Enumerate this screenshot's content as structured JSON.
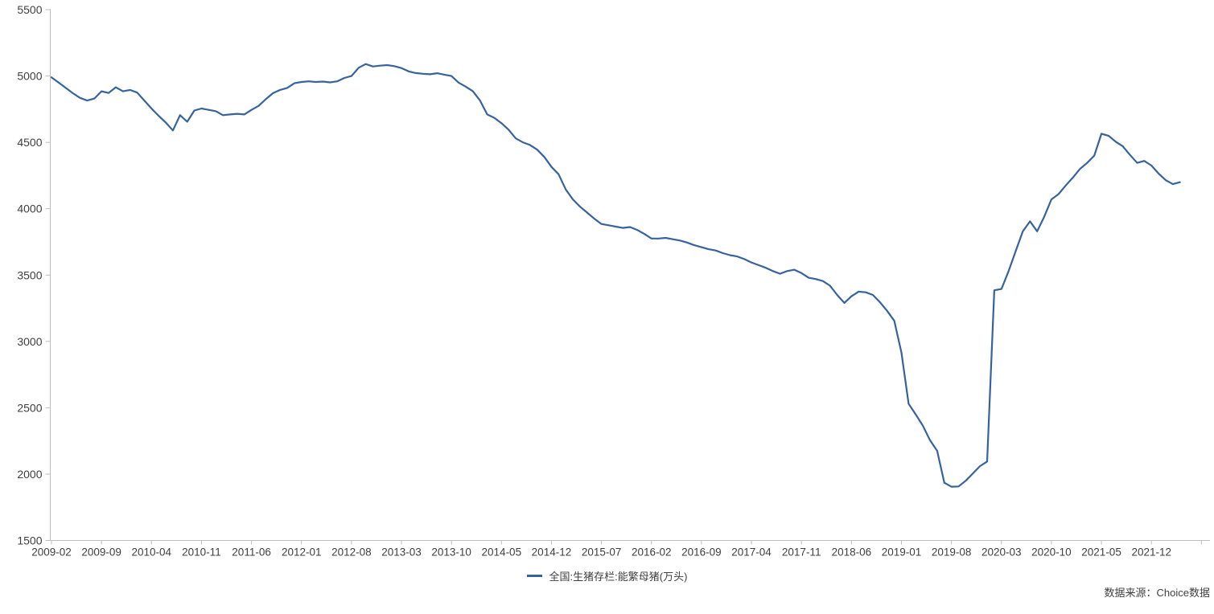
{
  "chart_data": {
    "type": "line",
    "title": "",
    "grid": false,
    "legend_position": "bottom-center",
    "ylim": [
      1500,
      5500
    ],
    "y_ticks": [
      5500,
      5000,
      4500,
      4000,
      3500,
      3000,
      2500,
      2000,
      1500
    ],
    "x_tick_labels": [
      "2009-02",
      "2009-09",
      "2010-04",
      "2010-11",
      "2011-06",
      "2012-01",
      "2012-08",
      "2013-03",
      "2013-10",
      "2014-05",
      "2014-12",
      "2015-07",
      "2016-02",
      "2016-09",
      "2017-04",
      "2017-11",
      "2018-06",
      "2019-01",
      "2019-08",
      "2020-03",
      "2020-10",
      "2021-05",
      "2021-12"
    ],
    "series": [
      {
        "name": "全国:生猪存栏:能繁母猪(万头)",
        "color": "#36639e",
        "months": [
          "2009-02",
          "2009-03",
          "2009-04",
          "2009-05",
          "2009-06",
          "2009-07",
          "2009-08",
          "2009-09",
          "2009-10",
          "2009-11",
          "2009-12",
          "2010-01",
          "2010-02",
          "2010-03",
          "2010-04",
          "2010-05",
          "2010-06",
          "2010-07",
          "2010-08",
          "2010-09",
          "2010-10",
          "2010-11",
          "2010-12",
          "2011-01",
          "2011-02",
          "2011-03",
          "2011-04",
          "2011-05",
          "2011-06",
          "2011-07",
          "2011-08",
          "2011-09",
          "2011-10",
          "2011-11",
          "2011-12",
          "2012-01",
          "2012-02",
          "2012-03",
          "2012-04",
          "2012-05",
          "2012-06",
          "2012-07",
          "2012-08",
          "2012-09",
          "2012-10",
          "2012-11",
          "2012-12",
          "2013-01",
          "2013-02",
          "2013-03",
          "2013-04",
          "2013-05",
          "2013-06",
          "2013-07",
          "2013-08",
          "2013-09",
          "2013-10",
          "2013-11",
          "2013-12",
          "2014-01",
          "2014-02",
          "2014-03",
          "2014-04",
          "2014-05",
          "2014-06",
          "2014-07",
          "2014-08",
          "2014-09",
          "2014-10",
          "2014-11",
          "2014-12",
          "2015-01",
          "2015-02",
          "2015-03",
          "2015-04",
          "2015-05",
          "2015-06",
          "2015-07",
          "2015-08",
          "2015-09",
          "2015-10",
          "2015-11",
          "2015-12",
          "2016-01",
          "2016-02",
          "2016-03",
          "2016-04",
          "2016-05",
          "2016-06",
          "2016-07",
          "2016-08",
          "2016-09",
          "2016-10",
          "2016-11",
          "2016-12",
          "2017-01",
          "2017-02",
          "2017-03",
          "2017-04",
          "2017-05",
          "2017-06",
          "2017-07",
          "2017-08",
          "2017-09",
          "2017-10",
          "2017-11",
          "2017-12",
          "2018-01",
          "2018-02",
          "2018-03",
          "2018-04",
          "2018-05",
          "2018-06",
          "2018-07",
          "2018-08",
          "2018-09",
          "2018-10",
          "2018-11",
          "2018-12",
          "2019-01",
          "2019-02",
          "2019-03",
          "2019-04",
          "2019-05",
          "2019-06",
          "2019-07",
          "2019-08",
          "2019-09",
          "2019-10",
          "2019-11",
          "2019-12",
          "2020-01",
          "2020-02",
          "2020-03",
          "2020-04",
          "2020-05",
          "2020-06",
          "2020-07",
          "2020-08",
          "2020-09",
          "2020-10",
          "2020-11",
          "2020-12",
          "2021-01",
          "2021-02",
          "2021-03",
          "2021-04",
          "2021-05",
          "2021-06",
          "2021-07",
          "2021-08",
          "2021-09",
          "2021-10",
          "2021-11",
          "2021-12",
          "2022-01",
          "2022-02",
          "2022-03",
          "2022-04"
        ],
        "values": [
          4990,
          4950,
          4910,
          4870,
          4835,
          4815,
          4830,
          4885,
          4872,
          4915,
          4885,
          4895,
          4875,
          4815,
          4755,
          4700,
          4650,
          4590,
          4705,
          4655,
          4740,
          4755,
          4745,
          4735,
          4705,
          4710,
          4715,
          4710,
          4745,
          4775,
          4825,
          4870,
          4895,
          4910,
          4945,
          4955,
          4960,
          4955,
          4958,
          4952,
          4960,
          4985,
          5000,
          5062,
          5090,
          5072,
          5078,
          5082,
          5074,
          5060,
          5035,
          5022,
          5017,
          5013,
          5021,
          5010,
          5000,
          4950,
          4920,
          4885,
          4815,
          4710,
          4685,
          4645,
          4595,
          4530,
          4500,
          4480,
          4445,
          4390,
          4315,
          4260,
          4145,
          4070,
          4015,
          3970,
          3925,
          3885,
          3875,
          3865,
          3855,
          3862,
          3840,
          3810,
          3775,
          3775,
          3780,
          3770,
          3760,
          3745,
          3725,
          3710,
          3695,
          3685,
          3665,
          3650,
          3640,
          3620,
          3595,
          3575,
          3555,
          3530,
          3510,
          3530,
          3540,
          3515,
          3480,
          3470,
          3455,
          3420,
          3350,
          3290,
          3340,
          3375,
          3370,
          3350,
          3295,
          3230,
          3155,
          2915,
          2530,
          2450,
          2365,
          2255,
          2175,
          1935,
          1905,
          1907,
          1950,
          2005,
          2060,
          2095,
          3385,
          3395,
          3530,
          3680,
          3830,
          3905,
          3830,
          3940,
          4070,
          4110,
          4175,
          4235,
          4300,
          4345,
          4400,
          4565,
          4550,
          4505,
          4470,
          4405,
          4345,
          4360,
          4325,
          4265,
          4215,
          4185,
          4200
        ]
      }
    ]
  },
  "legend": {
    "label": "全国:生猪存栏:能繁母猪(万头)"
  },
  "footer": {
    "source": "数据来源：Choice数据"
  },
  "colors": {
    "line": "#36639e",
    "axis": "#bdbdbd",
    "tick_text": "#3f3f3f"
  }
}
